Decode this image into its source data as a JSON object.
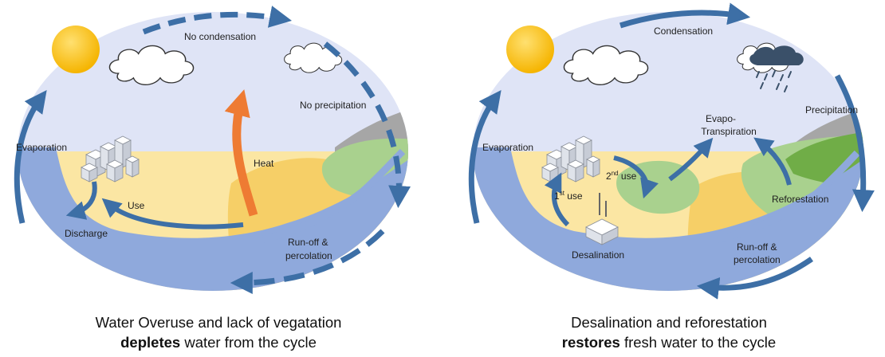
{
  "left_panel": {
    "labels": {
      "no_condensation": "No condensation",
      "no_precipitation": "No precipitation",
      "evaporation": "Evaporation",
      "heat": "Heat",
      "use": "Use",
      "discharge": "Discharge",
      "runoff_line1": "Run-off &",
      "runoff_line2": "percolation"
    },
    "caption_line1": "Water Overuse and lack of vegatation",
    "caption_bold": "depletes",
    "caption_rest": " water from the cycle"
  },
  "right_panel": {
    "labels": {
      "condensation": "Condensation",
      "precipitation": "Precipitation",
      "evapo_line1": "Evapo-",
      "evapo_line2": "Transpiration",
      "evaporation": "Evaporation",
      "second_num": "2",
      "second_sup": "nd",
      "second_word": " use",
      "first_num": "1",
      "first_sup": "st",
      "first_word": " use",
      "reforestation": "Reforestation",
      "runoff_line1": "Run-off &",
      "runoff_line2": "percolation",
      "desalination": "Desalination"
    },
    "caption_line1": "Desalination and reforestation",
    "caption_bold": "restores",
    "caption_rest": " fresh water to the cycle"
  },
  "colors": {
    "sky": "#dfe4f6",
    "land": "#fbe6a3",
    "land_dark": "#f6cf67",
    "water": "#8fa9dc",
    "arrow": "#3d6fa6",
    "heat": "#ee7b33",
    "green": "#a9d18e",
    "green_dark": "#70ad47",
    "mountain": "#a6a6a6",
    "sun": "#ffc000"
  }
}
